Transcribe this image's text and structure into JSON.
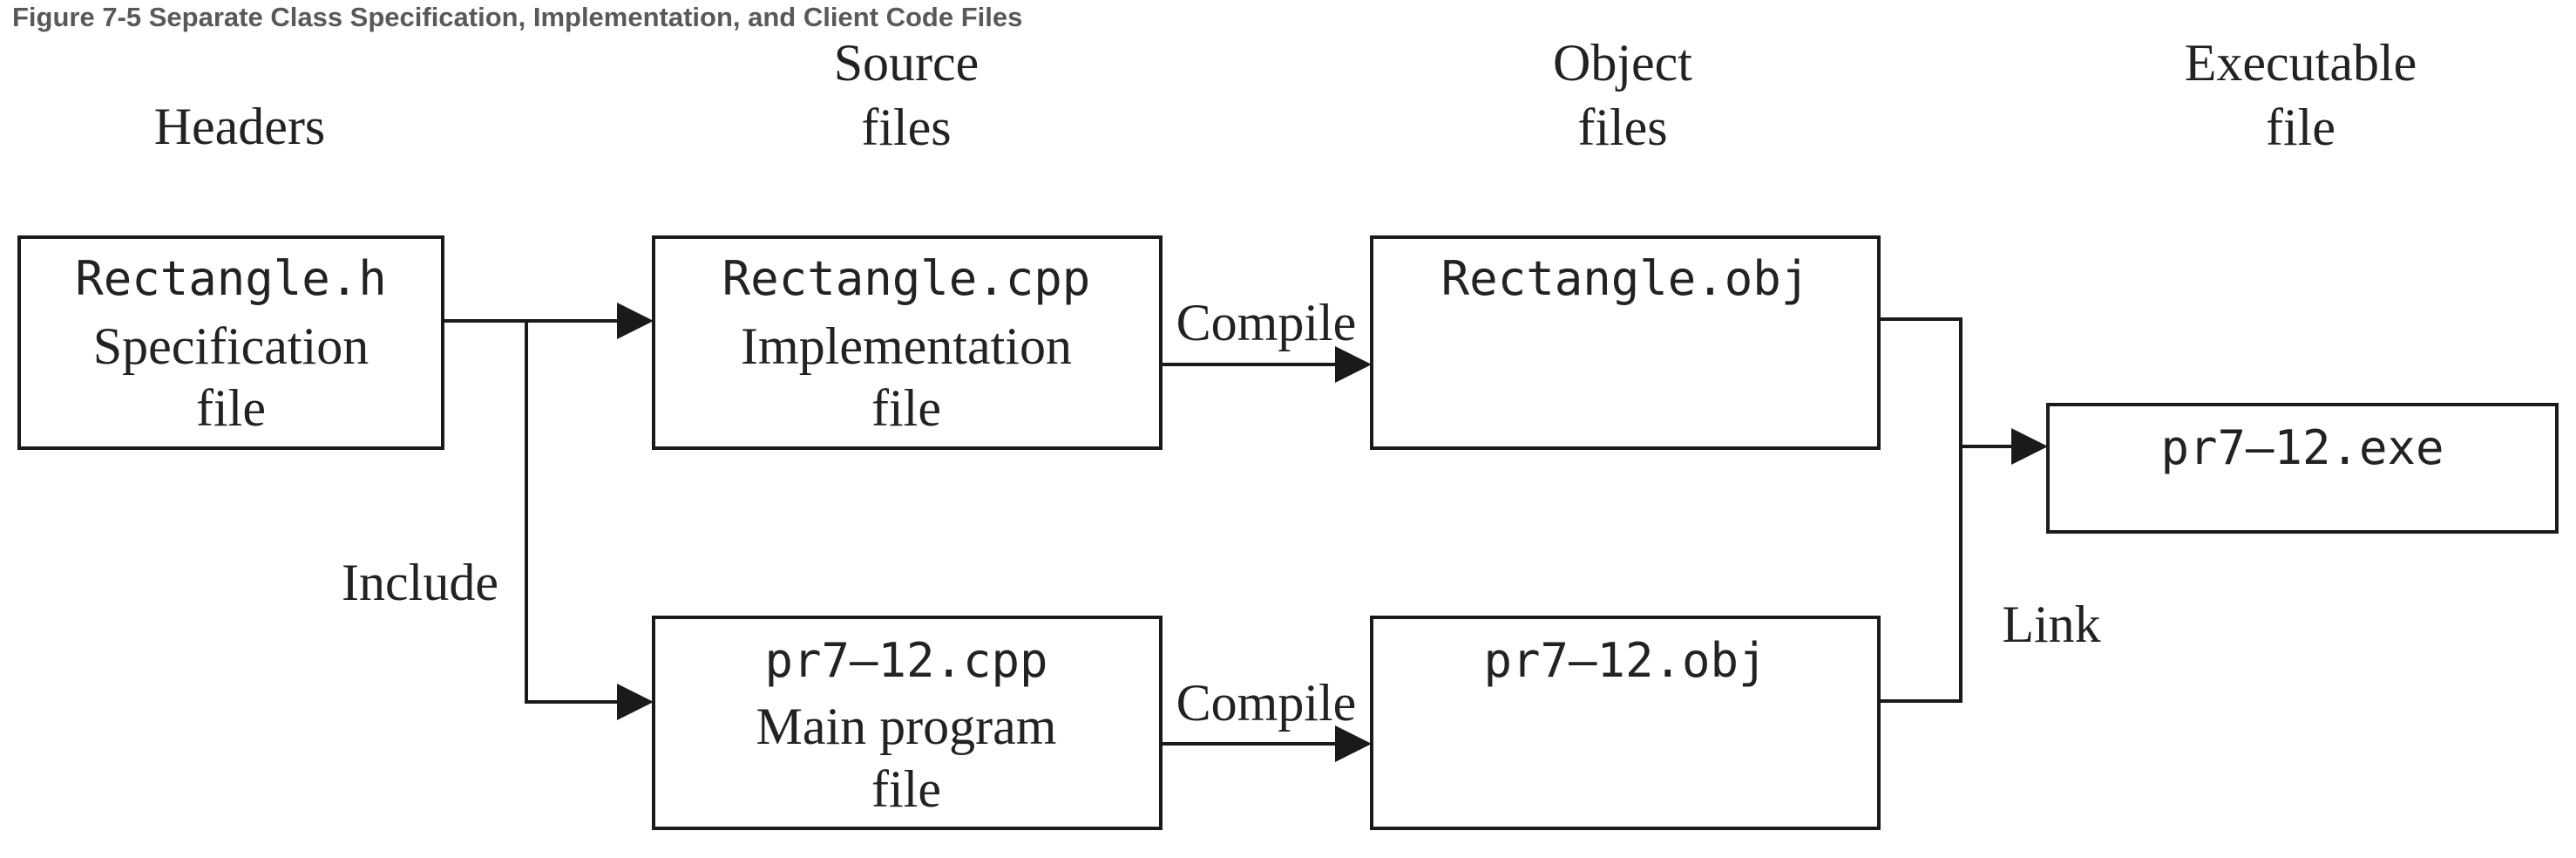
{
  "figure": {
    "caption": "Figure 7-5 Separate Class Specification, Implementation, and Client Code Files"
  },
  "columns": {
    "headers": [
      "Headers"
    ],
    "source": [
      "Source",
      "files"
    ],
    "object": [
      "Object",
      "files"
    ],
    "executable": [
      "Executable",
      "file"
    ]
  },
  "boxes": {
    "rectangle_h": {
      "filename": "Rectangle.h",
      "description": [
        "Specification",
        "file"
      ]
    },
    "rectangle_cpp": {
      "filename": "Rectangle.cpp",
      "description": [
        "Implementation",
        "file"
      ]
    },
    "pr7_12_cpp": {
      "filename": "pr7–12.cpp",
      "description": [
        "Main program",
        "file"
      ]
    },
    "rectangle_obj": {
      "filename": "Rectangle.obj"
    },
    "pr7_12_obj": {
      "filename": "pr7–12.obj"
    },
    "pr7_12_exe": {
      "filename": "pr7–12.exe"
    }
  },
  "edge_labels": {
    "include": "Include",
    "compile_top": "Compile",
    "compile_bottom": "Compile",
    "link": "Link"
  },
  "colors": {
    "caption": "#595959",
    "stroke": "#1a1a1a",
    "text": "#222222"
  }
}
